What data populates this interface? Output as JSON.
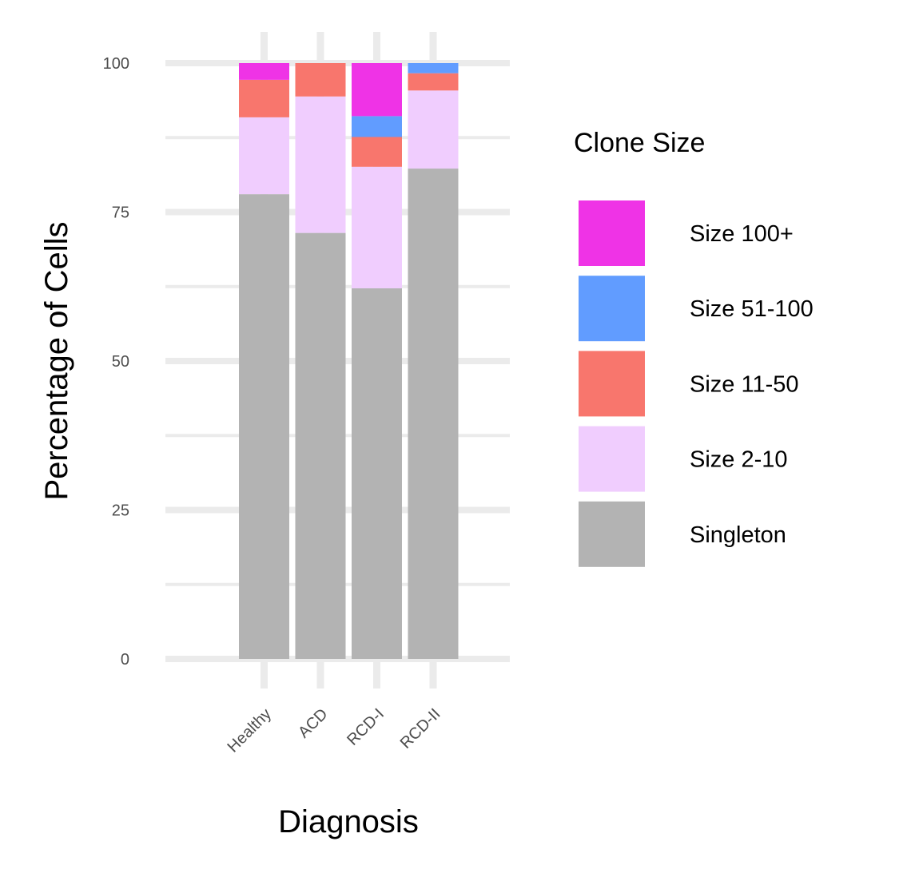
{
  "chart_data": {
    "type": "bar",
    "stacked": true,
    "xlabel": "Diagnosis",
    "ylabel": "Percentage of Cells",
    "ylim": [
      0,
      100
    ],
    "yticks": [
      0,
      25,
      50,
      75,
      100
    ],
    "categories": [
      "Healthy",
      "ACD",
      "RCD-I",
      "RCD-II"
    ],
    "legend": {
      "title": "Clone Size",
      "position": "right"
    },
    "series": [
      {
        "name": "Singleton",
        "color": "#b3b3b3",
        "values": [
          78.0,
          71.5,
          62.2,
          82.3
        ]
      },
      {
        "name": "Size 2-10",
        "color": "#f0cdfe",
        "values": [
          12.9,
          22.9,
          20.4,
          13.1
        ]
      },
      {
        "name": "Size 11-50",
        "color": "#f8766d",
        "values": [
          6.3,
          5.6,
          5.0,
          2.9
        ]
      },
      {
        "name": "Size 51-100",
        "color": "#619cff",
        "values": [
          0.0,
          0.0,
          3.5,
          1.7
        ]
      },
      {
        "name": "Size 100+",
        "color": "#ef33e6",
        "values": [
          2.8,
          0.0,
          8.9,
          0.0
        ]
      }
    ]
  }
}
